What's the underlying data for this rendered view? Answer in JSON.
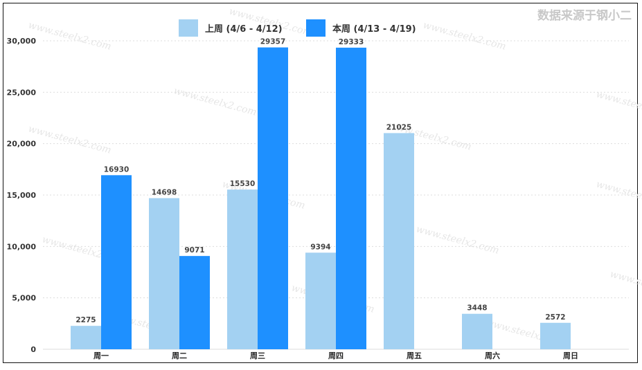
{
  "source_note": "数据来源于钢小二",
  "colors": {
    "last_week": "#a3d1f2",
    "this_week": "#1e90ff",
    "grid": "#dcdcdc",
    "watermark": "#e6e6e6"
  },
  "watermark_text": "www.steelx2.com",
  "chart_data": {
    "type": "bar",
    "title": "",
    "xlabel": "",
    "ylabel": "",
    "ylim": [
      0,
      30000
    ],
    "yticks": [
      0,
      5000,
      10000,
      15000,
      20000,
      25000,
      30000
    ],
    "ytick_labels": [
      "0",
      "5,000",
      "10,000",
      "15,000",
      "20,000",
      "25,000",
      "30,000"
    ],
    "categories": [
      "周一",
      "周二",
      "周三",
      "周四",
      "周五",
      "周六",
      "周日"
    ],
    "legend_position": "top-center",
    "grid": true,
    "series": [
      {
        "name": "上周 (4/6 - 4/12)",
        "color": "#a3d1f2",
        "values": [
          2275,
          14698,
          15530,
          9394,
          21025,
          3448,
          2572
        ]
      },
      {
        "name": "本周 (4/13 - 4/19)",
        "color": "#1e90ff",
        "values": [
          16930,
          9071,
          29357,
          29333,
          null,
          null,
          null
        ]
      }
    ]
  }
}
